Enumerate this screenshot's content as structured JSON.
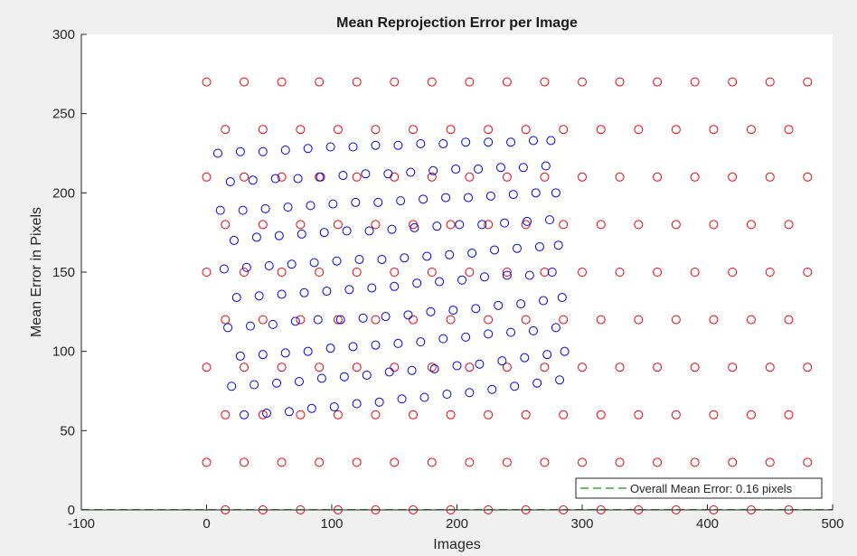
{
  "chart_data": {
    "type": "scatter",
    "title": "Mean Reprojection Error per Image",
    "xlabel": "Images",
    "ylabel": "Mean Error in Pixels",
    "xlim": [
      -100,
      500
    ],
    "ylim": [
      0,
      300
    ],
    "xticks": [
      -100,
      0,
      100,
      200,
      300,
      400,
      500
    ],
    "yticks": [
      0,
      50,
      100,
      150,
      200,
      250,
      300
    ],
    "xtick_labels": [
      "-100",
      "0",
      "100",
      "200",
      "300",
      "400",
      "500"
    ],
    "ytick_labels": [
      "0",
      "50",
      "100",
      "150",
      "200",
      "250",
      "300"
    ],
    "grid": false,
    "legend": {
      "placement": "bottom-right",
      "entries": [
        {
          "label": "Overall Mean Error: 0.16 pixels",
          "color": "#3aa63a",
          "style": "dashed-line"
        }
      ]
    },
    "reference_line": {
      "y": 0.16,
      "color": "#3aa63a"
    },
    "series": [
      {
        "color": "#e8000b",
        "marker": "open-circle",
        "points": [
          [
            0,
            270
          ],
          [
            30,
            270
          ],
          [
            60,
            270
          ],
          [
            90,
            270
          ],
          [
            120,
            270
          ],
          [
            150,
            270
          ],
          [
            180,
            270
          ],
          [
            210,
            270
          ],
          [
            240,
            270
          ],
          [
            270,
            270
          ],
          [
            300,
            270
          ],
          [
            330,
            270
          ],
          [
            360,
            270
          ],
          [
            390,
            270
          ],
          [
            420,
            270
          ],
          [
            450,
            270
          ],
          [
            480,
            270
          ],
          [
            15,
            240
          ],
          [
            45,
            240
          ],
          [
            75,
            240
          ],
          [
            105,
            240
          ],
          [
            135,
            240
          ],
          [
            165,
            240
          ],
          [
            195,
            240
          ],
          [
            225,
            240
          ],
          [
            255,
            240
          ],
          [
            285,
            240
          ],
          [
            315,
            240
          ],
          [
            345,
            240
          ],
          [
            375,
            240
          ],
          [
            405,
            240
          ],
          [
            435,
            240
          ],
          [
            465,
            240
          ],
          [
            0,
            210
          ],
          [
            30,
            210
          ],
          [
            60,
            210
          ],
          [
            90,
            210
          ],
          [
            120,
            210
          ],
          [
            150,
            210
          ],
          [
            180,
            210
          ],
          [
            210,
            210
          ],
          [
            240,
            210
          ],
          [
            270,
            210
          ],
          [
            300,
            210
          ],
          [
            330,
            210
          ],
          [
            360,
            210
          ],
          [
            390,
            210
          ],
          [
            420,
            210
          ],
          [
            450,
            210
          ],
          [
            480,
            210
          ],
          [
            15,
            180
          ],
          [
            45,
            180
          ],
          [
            75,
            180
          ],
          [
            105,
            180
          ],
          [
            135,
            180
          ],
          [
            165,
            180
          ],
          [
            195,
            180
          ],
          [
            225,
            180
          ],
          [
            255,
            180
          ],
          [
            285,
            180
          ],
          [
            315,
            180
          ],
          [
            345,
            180
          ],
          [
            375,
            180
          ],
          [
            405,
            180
          ],
          [
            435,
            180
          ],
          [
            465,
            180
          ],
          [
            0,
            150
          ],
          [
            30,
            150
          ],
          [
            60,
            150
          ],
          [
            90,
            150
          ],
          [
            120,
            150
          ],
          [
            150,
            150
          ],
          [
            180,
            150
          ],
          [
            210,
            150
          ],
          [
            240,
            150
          ],
          [
            270,
            150
          ],
          [
            300,
            150
          ],
          [
            330,
            150
          ],
          [
            360,
            150
          ],
          [
            390,
            150
          ],
          [
            420,
            150
          ],
          [
            450,
            150
          ],
          [
            480,
            150
          ],
          [
            15,
            120
          ],
          [
            45,
            120
          ],
          [
            75,
            120
          ],
          [
            105,
            120
          ],
          [
            135,
            120
          ],
          [
            165,
            120
          ],
          [
            195,
            120
          ],
          [
            225,
            120
          ],
          [
            255,
            120
          ],
          [
            285,
            120
          ],
          [
            315,
            120
          ],
          [
            345,
            120
          ],
          [
            375,
            120
          ],
          [
            405,
            120
          ],
          [
            435,
            120
          ],
          [
            465,
            120
          ],
          [
            0,
            90
          ],
          [
            30,
            90
          ],
          [
            60,
            90
          ],
          [
            90,
            90
          ],
          [
            120,
            90
          ],
          [
            150,
            90
          ],
          [
            180,
            90
          ],
          [
            210,
            90
          ],
          [
            240,
            90
          ],
          [
            270,
            90
          ],
          [
            300,
            90
          ],
          [
            330,
            90
          ],
          [
            360,
            90
          ],
          [
            390,
            90
          ],
          [
            420,
            90
          ],
          [
            450,
            90
          ],
          [
            480,
            90
          ],
          [
            15,
            60
          ],
          [
            45,
            60
          ],
          [
            75,
            60
          ],
          [
            105,
            60
          ],
          [
            135,
            60
          ],
          [
            165,
            60
          ],
          [
            195,
            60
          ],
          [
            225,
            60
          ],
          [
            255,
            60
          ],
          [
            285,
            60
          ],
          [
            315,
            60
          ],
          [
            345,
            60
          ],
          [
            375,
            60
          ],
          [
            405,
            60
          ],
          [
            435,
            60
          ],
          [
            465,
            60
          ],
          [
            0,
            30
          ],
          [
            30,
            30
          ],
          [
            60,
            30
          ],
          [
            90,
            30
          ],
          [
            120,
            30
          ],
          [
            150,
            30
          ],
          [
            180,
            30
          ],
          [
            210,
            30
          ],
          [
            240,
            30
          ],
          [
            270,
            30
          ],
          [
            300,
            30
          ],
          [
            330,
            30
          ],
          [
            360,
            30
          ],
          [
            390,
            30
          ],
          [
            420,
            30
          ],
          [
            450,
            30
          ],
          [
            480,
            30
          ],
          [
            15,
            0
          ],
          [
            45,
            0
          ],
          [
            75,
            0
          ],
          [
            105,
            0
          ],
          [
            135,
            0
          ],
          [
            165,
            0
          ],
          [
            195,
            0
          ],
          [
            225,
            0
          ],
          [
            255,
            0
          ],
          [
            285,
            0
          ],
          [
            315,
            0
          ],
          [
            345,
            0
          ],
          [
            375,
            0
          ],
          [
            405,
            0
          ],
          [
            435,
            0
          ],
          [
            465,
            0
          ]
        ]
      },
      {
        "color": "#0000e6",
        "marker": "open-circle",
        "points": [
          [
            9,
            225
          ],
          [
            27,
            226
          ],
          [
            45,
            226
          ],
          [
            63,
            227
          ],
          [
            81,
            228
          ],
          [
            99,
            229
          ],
          [
            117,
            229
          ],
          [
            135,
            230
          ],
          [
            153,
            230
          ],
          [
            171,
            231
          ],
          [
            189,
            231
          ],
          [
            207,
            232
          ],
          [
            225,
            232
          ],
          [
            243,
            232
          ],
          [
            261,
            233
          ],
          [
            275,
            233
          ],
          [
            19,
            207
          ],
          [
            37,
            208
          ],
          [
            55,
            209
          ],
          [
            73,
            209
          ],
          [
            91,
            210
          ],
          [
            109,
            211
          ],
          [
            127,
            212
          ],
          [
            145,
            212
          ],
          [
            163,
            213
          ],
          [
            181,
            214
          ],
          [
            199,
            215
          ],
          [
            217,
            215
          ],
          [
            235,
            216
          ],
          [
            253,
            216
          ],
          [
            271,
            217
          ],
          [
            11,
            189
          ],
          [
            29,
            189
          ],
          [
            47,
            190
          ],
          [
            65,
            191
          ],
          [
            83,
            192
          ],
          [
            101,
            193
          ],
          [
            119,
            194
          ],
          [
            137,
            194
          ],
          [
            155,
            195
          ],
          [
            173,
            196
          ],
          [
            191,
            197
          ],
          [
            209,
            197
          ],
          [
            227,
            198
          ],
          [
            245,
            199
          ],
          [
            263,
            200
          ],
          [
            279,
            200
          ],
          [
            22,
            170
          ],
          [
            40,
            172
          ],
          [
            58,
            173
          ],
          [
            76,
            174
          ],
          [
            94,
            175
          ],
          [
            112,
            176
          ],
          [
            130,
            176
          ],
          [
            148,
            177
          ],
          [
            166,
            178
          ],
          [
            184,
            179
          ],
          [
            202,
            180
          ],
          [
            220,
            180
          ],
          [
            238,
            181
          ],
          [
            256,
            182
          ],
          [
            274,
            183
          ],
          [
            14,
            152
          ],
          [
            32,
            153
          ],
          [
            50,
            154
          ],
          [
            68,
            155
          ],
          [
            86,
            156
          ],
          [
            104,
            157
          ],
          [
            122,
            158
          ],
          [
            140,
            158
          ],
          [
            158,
            159
          ],
          [
            176,
            160
          ],
          [
            194,
            161
          ],
          [
            212,
            162
          ],
          [
            230,
            164
          ],
          [
            248,
            165
          ],
          [
            266,
            166
          ],
          [
            281,
            167
          ],
          [
            24,
            134
          ],
          [
            42,
            135
          ],
          [
            60,
            136
          ],
          [
            78,
            137
          ],
          [
            96,
            138
          ],
          [
            114,
            139
          ],
          [
            132,
            140
          ],
          [
            150,
            141
          ],
          [
            168,
            143
          ],
          [
            186,
            144
          ],
          [
            204,
            145
          ],
          [
            222,
            147
          ],
          [
            240,
            148
          ],
          [
            258,
            148
          ],
          [
            276,
            150
          ],
          [
            17,
            115
          ],
          [
            35,
            116
          ],
          [
            53,
            117
          ],
          [
            71,
            119
          ],
          [
            89,
            120
          ],
          [
            107,
            120
          ],
          [
            125,
            121
          ],
          [
            143,
            122
          ],
          [
            161,
            123
          ],
          [
            179,
            125
          ],
          [
            197,
            126
          ],
          [
            215,
            127
          ],
          [
            233,
            129
          ],
          [
            251,
            130
          ],
          [
            269,
            132
          ],
          [
            284,
            134
          ],
          [
            27,
            97
          ],
          [
            45,
            98
          ],
          [
            63,
            99
          ],
          [
            81,
            100
          ],
          [
            99,
            102
          ],
          [
            117,
            103
          ],
          [
            135,
            104
          ],
          [
            153,
            105
          ],
          [
            171,
            106
          ],
          [
            189,
            108
          ],
          [
            207,
            109
          ],
          [
            225,
            111
          ],
          [
            243,
            112
          ],
          [
            261,
            113
          ],
          [
            279,
            115
          ],
          [
            20,
            78
          ],
          [
            38,
            79
          ],
          [
            56,
            80
          ],
          [
            74,
            81
          ],
          [
            92,
            83
          ],
          [
            110,
            84
          ],
          [
            128,
            85
          ],
          [
            146,
            87
          ],
          [
            164,
            88
          ],
          [
            182,
            89
          ],
          [
            200,
            91
          ],
          [
            218,
            92
          ],
          [
            236,
            94
          ],
          [
            254,
            96
          ],
          [
            272,
            98
          ],
          [
            286,
            100
          ],
          [
            30,
            60
          ],
          [
            48,
            61
          ],
          [
            66,
            62
          ],
          [
            84,
            64
          ],
          [
            102,
            65
          ],
          [
            120,
            67
          ],
          [
            138,
            68
          ],
          [
            156,
            70
          ],
          [
            174,
            71
          ],
          [
            192,
            73
          ],
          [
            210,
            74
          ],
          [
            228,
            76
          ],
          [
            246,
            78
          ],
          [
            264,
            80
          ],
          [
            282,
            82
          ]
        ]
      }
    ]
  }
}
